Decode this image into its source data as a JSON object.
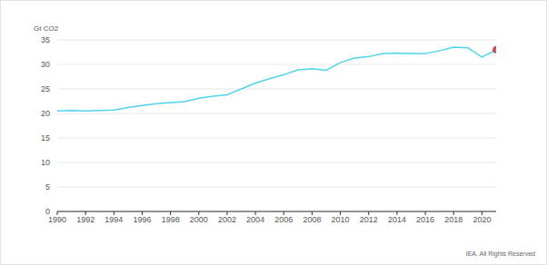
{
  "chart_data": {
    "type": "line",
    "ylabel": "Gt CO2",
    "annotations": [
      "IEA. All Rights Reserved"
    ],
    "x": [
      1990,
      1991,
      1992,
      1993,
      1994,
      1995,
      1996,
      1997,
      1998,
      1999,
      2000,
      2001,
      2002,
      2003,
      2004,
      2005,
      2006,
      2007,
      2008,
      2009,
      2010,
      2011,
      2012,
      2013,
      2014,
      2015,
      2016,
      2017,
      2018,
      2019,
      2020,
      2021
    ],
    "series": [
      {
        "name": "CO2",
        "color": "#4fd3ea",
        "marker": "last",
        "values": [
          20.5,
          20.6,
          20.5,
          20.6,
          20.7,
          21.2,
          21.6,
          22.0,
          22.2,
          22.4,
          23.1,
          23.5,
          23.8,
          25.0,
          26.2,
          27.1,
          27.9,
          28.9,
          29.1,
          28.8,
          30.4,
          31.3,
          31.6,
          32.2,
          32.3,
          32.2,
          32.2,
          32.8,
          33.5,
          33.4,
          31.5,
          33.0
        ]
      }
    ],
    "xlim": [
      1990,
      2021
    ],
    "xticks": [
      1990,
      1992,
      1994,
      1996,
      1998,
      2000,
      2002,
      2004,
      2006,
      2008,
      2010,
      2012,
      2014,
      2016,
      2018,
      2020
    ],
    "ylim": [
      0,
      35
    ],
    "yticks": [
      0,
      5,
      10,
      15,
      20,
      25,
      30,
      35
    ],
    "grid": true
  }
}
